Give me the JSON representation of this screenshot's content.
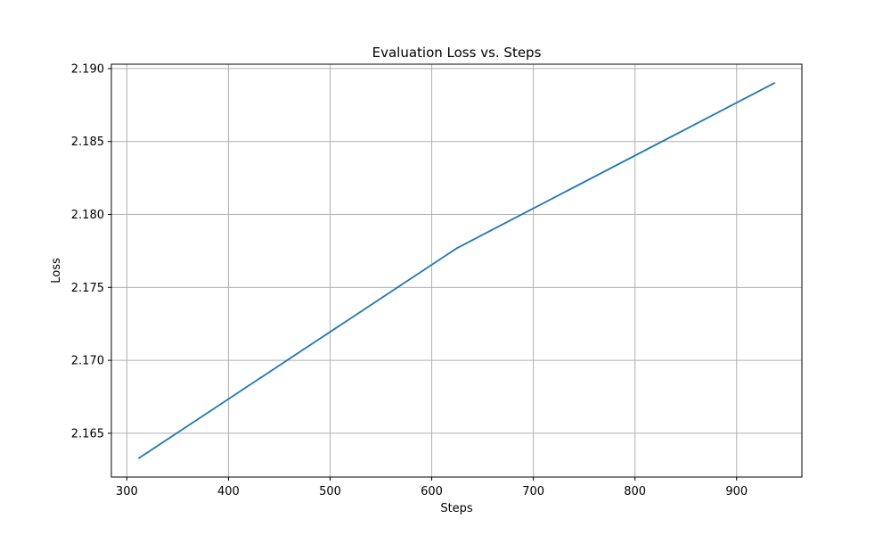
{
  "chart_data": {
    "type": "line",
    "title": "Evaluation Loss vs. Steps",
    "xlabel": "Steps",
    "ylabel": "Loss",
    "xlim": [
      284.8,
      964.2
    ],
    "ylim": [
      2.162,
      2.1903
    ],
    "x_ticks": [
      300,
      400,
      500,
      600,
      700,
      800,
      900
    ],
    "x_tick_labels": [
      "300",
      "400",
      "500",
      "600",
      "700",
      "800",
      "900"
    ],
    "y_ticks": [
      2.165,
      2.17,
      2.175,
      2.18,
      2.185,
      2.19
    ],
    "y_tick_labels": [
      "2.165",
      "2.170",
      "2.175",
      "2.180",
      "2.185",
      "2.190"
    ],
    "grid": true,
    "series": [
      {
        "color": "#1f77b4",
        "x": [
          312,
          625,
          937
        ],
        "y": [
          2.1633,
          2.1777,
          2.189
        ]
      }
    ]
  }
}
